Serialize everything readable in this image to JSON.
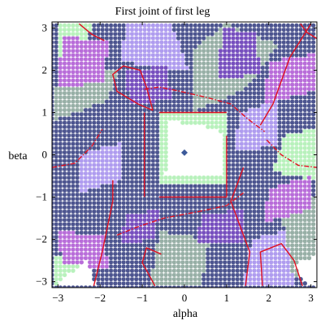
{
  "chart_data": {
    "type": "scatter",
    "title": "First joint of first leg",
    "xlabel": "alpha",
    "ylabel": "beta",
    "xlim": [
      -3.14159,
      3.14159
    ],
    "ylim": [
      -3.14159,
      3.14159
    ],
    "x_ticks": [
      -3,
      -2,
      -1,
      0,
      1,
      2,
      3
    ],
    "y_ticks": [
      -3,
      -2,
      -1,
      0,
      1,
      2,
      3
    ],
    "x_tick_labels": [
      "−3",
      "−2",
      "−1",
      "0",
      "1",
      "2",
      "3"
    ],
    "y_tick_labels": [
      "−3",
      "−2",
      "−1",
      "0",
      "1",
      "2",
      "3"
    ],
    "grid": false,
    "legend": "none",
    "colors": {
      "navy": "#3d4585",
      "purple": "#6a3fb8",
      "lavender": "#a894ee",
      "grey_green": "#8ea89e",
      "mint": "#b2f0b6",
      "magenta": "#b25fd6",
      "white": "#ffffff",
      "curve": "#e01020"
    },
    "region_map": {
      "description": "Sampled configuration-space points colored by region class",
      "grid_step": 0.1,
      "regions": [
        {
          "color": "mint",
          "polygon": [
            [
              -0.6,
              -0.7
            ],
            [
              1.0,
              -0.7
            ],
            [
              1.0,
              1.0
            ],
            [
              -0.6,
              1.0
            ]
          ]
        },
        {
          "color": "white",
          "polygon": [
            [
              -0.45,
              -0.45
            ],
            [
              0.95,
              -0.45
            ],
            [
              0.85,
              0.6
            ],
            [
              -0.35,
              0.8
            ]
          ]
        },
        {
          "color": "grey_green",
          "polygon": [
            [
              0.2,
              1.0
            ],
            [
              1.5,
              1.6
            ],
            [
              2.2,
              2.6
            ],
            [
              1.0,
              3.1
            ],
            [
              0.2,
              2.5
            ]
          ]
        },
        {
          "color": "grey_green",
          "polygon": [
            [
              -3.1,
              0.8
            ],
            [
              -1.8,
              1.3
            ],
            [
              -1.6,
              2.0
            ],
            [
              -2.8,
              2.2
            ],
            [
              -3.1,
              1.5
            ]
          ]
        },
        {
          "color": "grey_green",
          "polygon": [
            [
              -0.8,
              -3.1
            ],
            [
              0.4,
              -3.1
            ],
            [
              0.6,
              -2.0
            ],
            [
              -0.6,
              -1.8
            ]
          ]
        },
        {
          "color": "grey_green",
          "polygon": [
            [
              2.3,
              -1.2
            ],
            [
              3.1,
              -1.0
            ],
            [
              3.1,
              -3.1
            ],
            [
              2.5,
              -2.8
            ]
          ]
        },
        {
          "color": "mint",
          "polygon": [
            [
              -3.0,
              2.1
            ],
            [
              -2.4,
              2.2
            ],
            [
              -2.2,
              3.1
            ],
            [
              -3.0,
              3.1
            ]
          ]
        },
        {
          "color": "mint",
          "polygon": [
            [
              2.1,
              -0.4
            ],
            [
              3.1,
              -0.6
            ],
            [
              3.1,
              0.6
            ],
            [
              2.4,
              0.5
            ]
          ]
        },
        {
          "color": "mint",
          "polygon": [
            [
              -3.1,
              -2.4
            ],
            [
              -2.6,
              -2.3
            ],
            [
              -2.4,
              -3.1
            ],
            [
              -3.1,
              -3.1
            ]
          ]
        },
        {
          "color": "lavender",
          "polygon": [
            [
              -1.5,
              2.2
            ],
            [
              0.1,
              2.0
            ],
            [
              -0.3,
              3.1
            ],
            [
              -1.4,
              3.1
            ]
          ]
        },
        {
          "color": "lavender",
          "polygon": [
            [
              1.6,
              -2.0
            ],
            [
              2.4,
              -1.8
            ],
            [
              2.6,
              -3.1
            ],
            [
              1.4,
              -3.1
            ]
          ]
        },
        {
          "color": "lavender",
          "polygon": [
            [
              1.2,
              0.1
            ],
            [
              2.2,
              0.2
            ],
            [
              2.2,
              1.3
            ],
            [
              1.3,
              1.0
            ]
          ]
        },
        {
          "color": "lavender",
          "polygon": [
            [
              -2.5,
              -0.9
            ],
            [
              -1.5,
              -0.6
            ],
            [
              -1.5,
              0.3
            ],
            [
              -2.5,
              0.0
            ]
          ]
        },
        {
          "color": "magenta",
          "polygon": [
            [
              -3.0,
              1.6
            ],
            [
              -1.9,
              1.7
            ],
            [
              -1.8,
              2.7
            ],
            [
              -2.9,
              2.8
            ]
          ]
        },
        {
          "color": "magenta",
          "polygon": [
            [
              1.9,
              1.2
            ],
            [
              3.1,
              1.5
            ],
            [
              3.1,
              2.4
            ],
            [
              2.0,
              2.2
            ]
          ]
        },
        {
          "color": "magenta",
          "polygon": [
            [
              -3.0,
              -1.8
            ],
            [
              -1.9,
              -1.9
            ],
            [
              -1.8,
              -2.7
            ],
            [
              -2.9,
              -2.6
            ]
          ]
        },
        {
          "color": "magenta",
          "polygon": [
            [
              1.9,
              -1.6
            ],
            [
              3.0,
              -1.3
            ],
            [
              3.0,
              -0.5
            ],
            [
              2.0,
              -0.8
            ]
          ]
        },
        {
          "color": "purple",
          "polygon": [
            [
              -1.3,
              1.2
            ],
            [
              -0.3,
              1.3
            ],
            [
              -0.4,
              2.1
            ],
            [
              -1.4,
              2.0
            ]
          ]
        },
        {
          "color": "purple",
          "polygon": [
            [
              0.4,
              -1.4
            ],
            [
              1.4,
              -1.3
            ],
            [
              1.4,
              -2.1
            ],
            [
              0.3,
              -2.1
            ]
          ]
        },
        {
          "color": "purple",
          "polygon": [
            [
              -1.4,
              -1.4
            ],
            [
              -0.6,
              -1.3
            ],
            [
              -0.7,
              -2.0
            ],
            [
              -1.5,
              -2.1
            ]
          ]
        },
        {
          "color": "purple",
          "polygon": [
            [
              0.8,
              1.8
            ],
            [
              1.8,
              1.9
            ],
            [
              1.7,
              2.9
            ],
            [
              0.9,
              3.0
            ]
          ]
        },
        {
          "color": "white",
          "polygon": [
            [
              -3.1,
              -3.1
            ],
            [
              -2.3,
              -2.5
            ],
            [
              -2.1,
              -3.1
            ]
          ]
        },
        {
          "color": "white",
          "polygon": [
            [
              2.6,
              -2.6
            ],
            [
              3.1,
              -2.4
            ],
            [
              3.1,
              -3.1
            ],
            [
              2.9,
              -3.1
            ]
          ]
        }
      ],
      "default_color": "navy"
    },
    "center_marker": {
      "x": 0.0,
      "y": 0.05,
      "color": "#3d5a9a"
    },
    "curves": [
      {
        "name": "",
        "style": "solid",
        "points": [
          [
            -2.5,
            3.1
          ],
          [
            -2.2,
            2.85
          ],
          [
            -1.9,
            2.7
          ]
        ]
      },
      {
        "name": "",
        "style": "solid",
        "points": [
          [
            -0.75,
            1.05
          ],
          [
            -1.1,
            1.2
          ],
          [
            -1.6,
            1.5
          ],
          [
            -1.7,
            1.9
          ],
          [
            -1.45,
            2.1
          ],
          [
            -1.05,
            2.0
          ],
          [
            -0.9,
            1.6
          ],
          [
            -0.75,
            1.05
          ]
        ]
      },
      {
        "name": "",
        "style": "dashed",
        "points": [
          [
            -0.95,
            1.55
          ],
          [
            -0.6,
            1.6
          ],
          [
            -0.1,
            1.5
          ],
          [
            0.55,
            1.35
          ],
          [
            1.1,
            1.2
          ],
          [
            1.5,
            0.85
          ],
          [
            1.9,
            0.55
          ]
        ]
      },
      {
        "name": "",
        "style": "solid",
        "points": [
          [
            1.8,
            0.7
          ],
          [
            2.1,
            1.2
          ],
          [
            2.5,
            2.3
          ],
          [
            3.0,
            3.1
          ]
        ]
      },
      {
        "name": "",
        "style": "solid",
        "points": [
          [
            2.75,
            3.1
          ],
          [
            2.9,
            2.9
          ],
          [
            3.14,
            2.75
          ]
        ]
      },
      {
        "name": "",
        "style": "solid",
        "points": [
          [
            -0.95,
            -1.0
          ],
          [
            -0.95,
            1.0
          ]
        ]
      },
      {
        "name": "",
        "style": "solid",
        "points": [
          [
            -0.6,
            -1.0
          ],
          [
            1.0,
            -1.0
          ]
        ]
      },
      {
        "name": "",
        "style": "solid",
        "points": [
          [
            -0.6,
            1.0
          ],
          [
            1.0,
            1.0
          ]
        ]
      },
      {
        "name": "",
        "style": "solid",
        "points": [
          [
            1.0,
            -1.0
          ],
          [
            1.0,
            0.45
          ]
        ]
      },
      {
        "name": "",
        "style": "dashed",
        "points": [
          [
            -3.14,
            -0.3
          ],
          [
            -2.6,
            -0.2
          ],
          [
            -2.2,
            0.2
          ],
          [
            -1.95,
            0.6
          ]
        ]
      },
      {
        "name": "",
        "style": "dashed",
        "points": [
          [
            1.95,
            0.35
          ],
          [
            2.3,
            0.0
          ],
          [
            2.7,
            -0.25
          ],
          [
            3.14,
            -0.3
          ]
        ]
      },
      {
        "name": "",
        "style": "dashed",
        "points": [
          [
            -1.6,
            -1.9
          ],
          [
            -1.1,
            -1.7
          ],
          [
            -0.5,
            -1.5
          ],
          [
            0.3,
            -1.35
          ],
          [
            1.0,
            -1.2
          ],
          [
            1.4,
            -0.9
          ]
        ]
      },
      {
        "name": "",
        "style": "solid",
        "points": [
          [
            -1.7,
            -0.6
          ],
          [
            -1.7,
            -1.1
          ],
          [
            -1.95,
            -2.3
          ],
          [
            -2.15,
            -3.1
          ]
        ]
      },
      {
        "name": "",
        "style": "solid",
        "points": [
          [
            -0.55,
            -2.35
          ],
          [
            -0.9,
            -2.2
          ],
          [
            -1.0,
            -2.55
          ],
          [
            -0.7,
            -3.1
          ]
        ]
      },
      {
        "name": "",
        "style": "solid",
        "points": [
          [
            1.4,
            -0.3
          ],
          [
            1.1,
            -1.1
          ],
          [
            1.55,
            -2.3
          ],
          [
            1.45,
            -3.1
          ]
        ]
      },
      {
        "name": "",
        "style": "solid",
        "points": [
          [
            1.85,
            -3.1
          ],
          [
            1.8,
            -2.3
          ],
          [
            2.3,
            -2.1
          ],
          [
            2.6,
            -2.5
          ],
          [
            2.8,
            -3.1
          ]
        ]
      }
    ]
  }
}
